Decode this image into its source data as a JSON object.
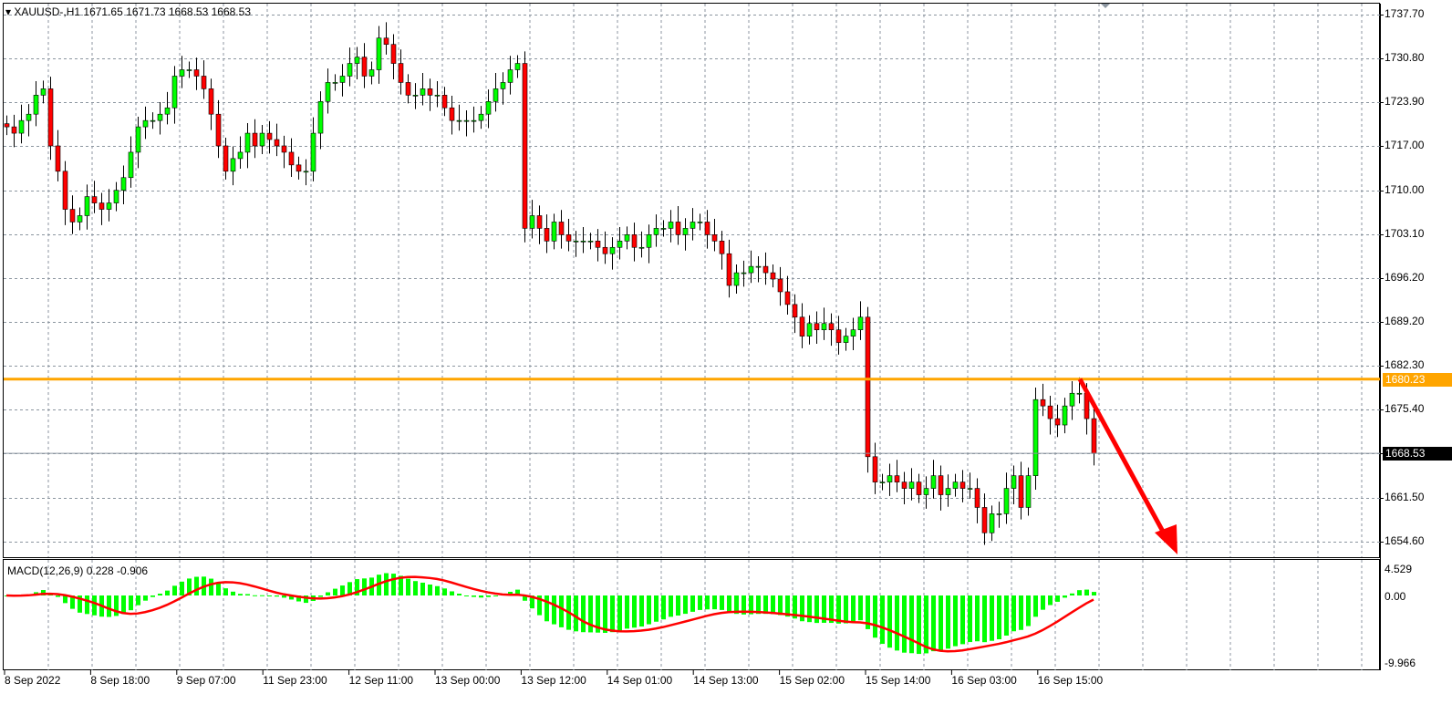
{
  "header": {
    "symbol": "XAUUSD-,H1",
    "open": "1671.65",
    "high": "1671.73",
    "low": "1668.53",
    "close": "1668.53"
  },
  "price_axis": [
    "1737.70",
    "1730.80",
    "1723.90",
    "1717.00",
    "1710.00",
    "1703.10",
    "1696.20",
    "1689.20",
    "1682.30",
    "1675.40",
    "1661.50",
    "1654.60"
  ],
  "price_grid_values": [
    1737.7,
    1730.8,
    1723.9,
    1717.0,
    1710.0,
    1703.1,
    1696.2,
    1689.2,
    1682.3,
    1675.4,
    1668.5,
    1661.5,
    1654.6
  ],
  "horizontal_line": {
    "value": "1680.23",
    "color": "#ffa500"
  },
  "current_price": {
    "value": "1668.53"
  },
  "macd": {
    "label": "MACD(12,26,9) 0.228 -0.906",
    "axis": [
      "4.529",
      "0.00",
      "-9.966"
    ],
    "hist_color": "#00ff00",
    "signal_color": "#ff0000"
  },
  "time_axis": [
    "8 Sep 2022",
    "8 Sep 18:00",
    "9 Sep 07:00",
    "11 Sep 23:00",
    "12 Sep 11:00",
    "13 Sep 00:00",
    "13 Sep 12:00",
    "14 Sep 01:00",
    "14 Sep 13:00",
    "15 Sep 02:00",
    "15 Sep 14:00",
    "16 Sep 03:00",
    "16 Sep 15:00"
  ],
  "arrow": {
    "color": "#ff0000",
    "direction": "down"
  },
  "colors": {
    "bull": "#00ff00",
    "bear": "#ff0000",
    "grid": "#8c96a0"
  },
  "chart_data": {
    "type": "candlestick",
    "symbol": "XAUUSD-",
    "timeframe": "H1",
    "ylim": [
      1654.6,
      1737.7
    ],
    "closes": [
      1720,
      1719,
      1721,
      1722,
      1725,
      1726,
      1717,
      1713,
      1707,
      1705,
      1706,
      1709,
      1708,
      1707,
      1708,
      1710,
      1712,
      1716,
      1720,
      1721,
      1721,
      1722,
      1723,
      1728,
      1729,
      1729,
      1728,
      1726,
      1722,
      1717,
      1713,
      1715,
      1716,
      1719,
      1717,
      1719,
      1718,
      1717,
      1716,
      1714,
      1713,
      1713,
      1719,
      1724,
      1727,
      1727,
      1728,
      1730,
      1731,
      1728,
      1729,
      1734,
      1733,
      1730,
      1727,
      1725,
      1725,
      1726,
      1725,
      1725,
      1723,
      1721,
      1721,
      1721,
      1721,
      1722,
      1724,
      1726,
      1727,
      1729,
      1730,
      1704,
      1706,
      1704,
      1702,
      1705,
      1703,
      1702,
      1702,
      1702,
      1702,
      1701,
      1700,
      1701,
      1702,
      1703,
      1701,
      1701,
      1703,
      1704,
      1704,
      1705,
      1703,
      1704,
      1705,
      1705,
      1703,
      1702,
      1700,
      1695,
      1697,
      1697,
      1698,
      1698,
      1697,
      1696,
      1694,
      1692,
      1690,
      1687,
      1689,
      1688,
      1689,
      1688,
      1686,
      1687,
      1688,
      1690,
      1668,
      1664,
      1664,
      1665,
      1664,
      1663,
      1664,
      1662,
      1663,
      1665,
      1662,
      1663,
      1664,
      1663,
      1663,
      1660,
      1656,
      1659,
      1659,
      1663,
      1665,
      1660,
      1665,
      1677,
      1676,
      1674,
      1673,
      1676,
      1678,
      1678,
      1674,
      1668.53
    ]
  }
}
